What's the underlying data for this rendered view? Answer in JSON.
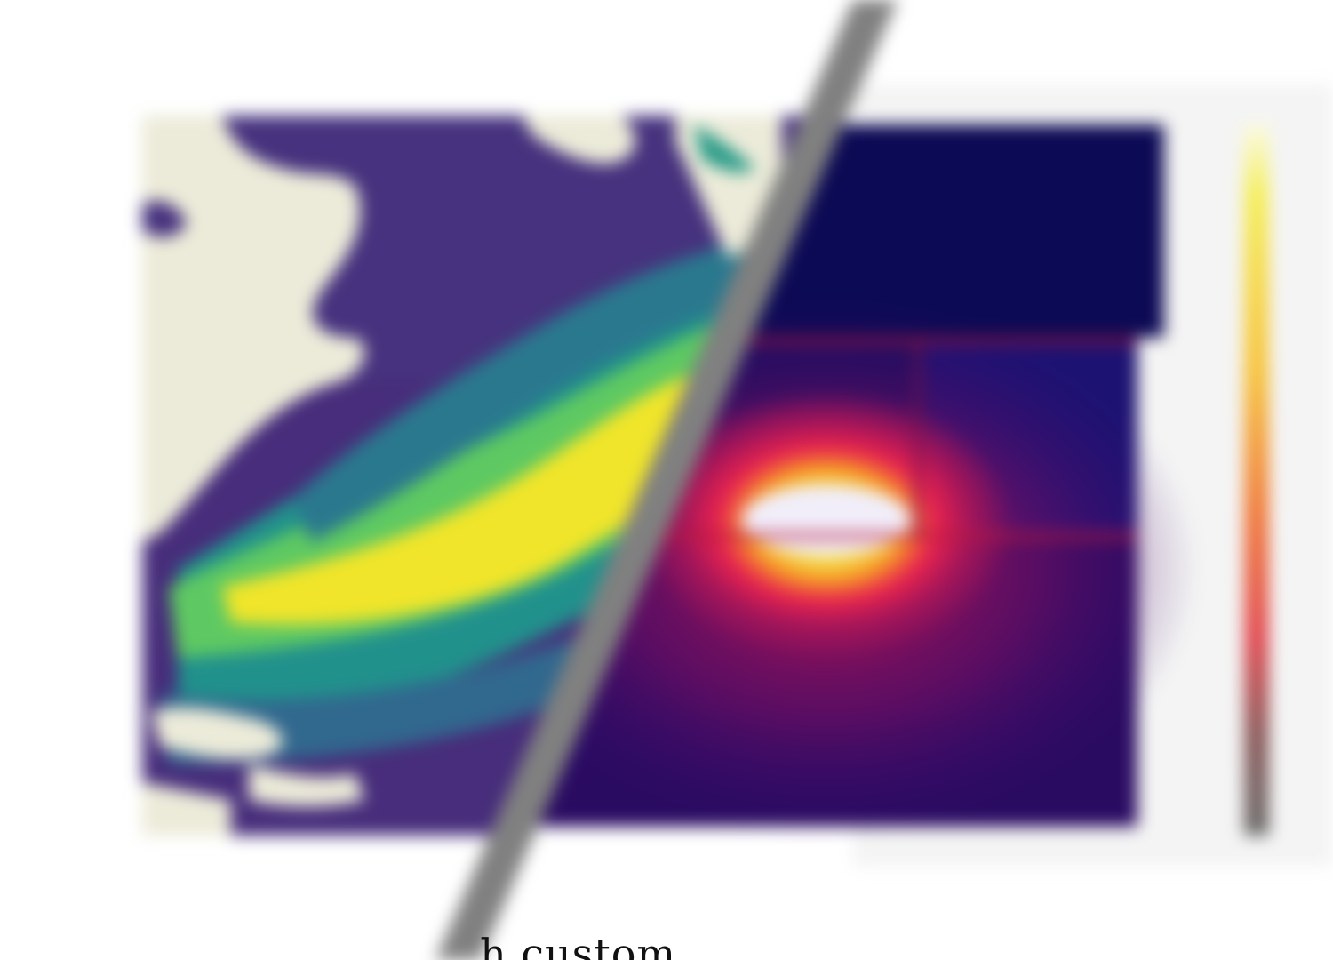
{
  "caption": {
    "faded_text": "",
    "visible_text": "h custom"
  },
  "palette": {
    "viridis": [
      "#440154",
      "#3b528b",
      "#21918c",
      "#5ec962",
      "#fde725"
    ],
    "land": "#ecebd9",
    "inferno_like": [
      "#0c0640",
      "#3a0a6e",
      "#a0155a",
      "#e8224f",
      "#f7a623",
      "#f3f05a",
      "#f4f0fa"
    ],
    "divider": "#808080"
  },
  "left_panel": {
    "colormap": "viridis-icon"
  },
  "right_panel": {
    "colormap": "heat-icon"
  }
}
